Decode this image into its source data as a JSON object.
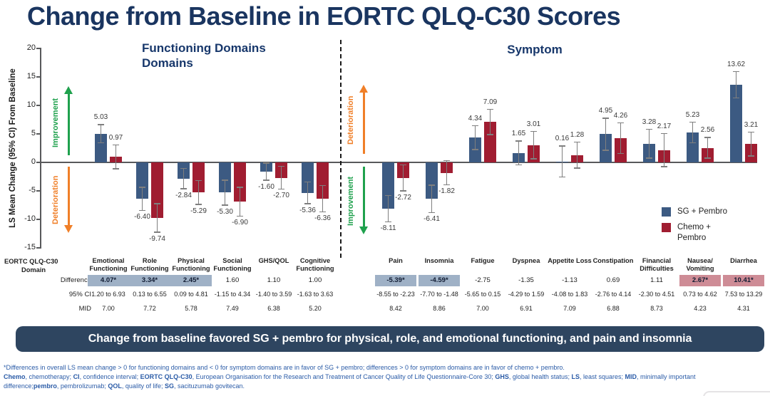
{
  "title": "Change from Baseline in EORTC QLQ-C30 Scores",
  "chart": {
    "y_axis_label": "LS Mean Change (95% CI) From Baseline",
    "functioning_title_line1": "Functioning Domains",
    "functioning_title_line2": "Domains",
    "symptom_title": "Symptom",
    "improvement_label": "Improvement",
    "deterioration_label": "Deterioration",
    "improvement_color": "#1FA14D",
    "deterioration_color": "#F07F28"
  },
  "chart_data": {
    "type": "bar",
    "title": "Change from Baseline in EORTC QLQ-C30 Scores",
    "ylabel": "LS Mean Change (95% CI) From Baseline",
    "ylim": [
      -15,
      20
    ],
    "y_ticks": [
      20,
      15,
      10,
      5,
      0,
      -5,
      -10,
      -15
    ],
    "grid": false,
    "legend_position": "right-bottom",
    "error_bars": "95% CI whiskers shown per bar (unlabeled; lengths estimated from pixels)",
    "groups": {
      "functioning": [
        "Emotional Functioning",
        "Role Functioning",
        "Physical Functioning",
        "Social Functioning",
        "GHS/QOL",
        "Cognitive Functioning"
      ],
      "symptom": [
        "Pain",
        "Insomnia",
        "Fatigue",
        "Dyspnea",
        "Appetite Loss",
        "Constipation",
        "Financial Difficulties",
        "Nausea/Vomiting",
        "Diarrhea"
      ]
    },
    "categories": [
      "Emotional Functioning",
      "Role Functioning",
      "Physical Functioning",
      "Social Functioning",
      "GHS/QOL",
      "Cognitive Functioning",
      "Pain",
      "Insomnia",
      "Fatigue",
      "Dyspnea",
      "Appetite Loss",
      "Constipation",
      "Financial Difficulties",
      "Nausea/Vomiting",
      "Diarrhea"
    ],
    "series": [
      {
        "name": "SG + Pembro",
        "color": "#3C5A82",
        "values": [
          5.03,
          -6.4,
          -2.84,
          -5.3,
          -1.6,
          -5.36,
          -8.11,
          -6.41,
          4.34,
          1.65,
          0.16,
          4.95,
          3.28,
          5.23,
          13.62
        ],
        "labels": [
          "5.03",
          "-6.40",
          "-2.84",
          "-5.30",
          "-1.60",
          "-5.36",
          "-8.11",
          "-6.41",
          "4.34",
          "1.65",
          "0.16",
          "4.95",
          "3.28",
          "5.23",
          "13.62"
        ],
        "errors_est": [
          1.7,
          2.1,
          1.9,
          2.3,
          1.6,
          2.0,
          2.4,
          2.5,
          2.2,
          2.2,
          2.8,
          2.9,
          2.6,
          1.9,
          2.4
        ]
      },
      {
        "name": "Chemo + Pembro",
        "color": "#A01D31",
        "values": [
          0.97,
          -9.74,
          -5.29,
          -6.9,
          -2.7,
          -6.36,
          -2.72,
          -1.82,
          7.09,
          3.01,
          1.28,
          4.26,
          2.17,
          2.56,
          3.21
        ],
        "labels": [
          "0.97",
          "-9.74",
          "-5.29",
          "-6.90",
          "-2.70",
          "-6.36",
          "-2.72",
          "-1.82",
          "7.09",
          "3.01",
          "1.28",
          "4.26",
          "2.17",
          "2.56",
          "3.21"
        ],
        "errors_est": [
          2.2,
          2.6,
          2.2,
          2.6,
          2.1,
          2.4,
          2.4,
          2.2,
          2.3,
          2.5,
          2.4,
          2.8,
          3.0,
          1.9,
          2.2
        ]
      }
    ]
  },
  "legend": {
    "items": [
      {
        "label": "SG + Pembro",
        "color": "#3C5A82"
      },
      {
        "label": "Chemo + Pembro",
        "color": "#A01D31"
      }
    ]
  },
  "table": {
    "domain_label_line1": "EORTC QLQ-C30",
    "domain_label_line2": "Domain",
    "row_labels": {
      "difference": "Difference",
      "ci": "95% CI",
      "mid": "MID"
    },
    "columns": [
      "Emotional Functioning",
      "Role Functioning",
      "Physical Functioning",
      "Social Functioning",
      "GHS/QOL",
      "Cognitive Functioning",
      "Pain",
      "Insomnia",
      "Fatigue",
      "Dyspnea",
      "Appetite Loss",
      "Constipation",
      "Financial Difficulties",
      "Nausea/ Vomiting",
      "Diarrhea"
    ],
    "difference": [
      "4.07*",
      "3.34*",
      "2.45*",
      "1.60",
      "1.10",
      "1.00",
      "-5.39*",
      "-4.59*",
      "-2.75",
      "-1.35",
      "-1.13",
      "0.69",
      "1.11",
      "2.67*",
      "10.41*"
    ],
    "difference_highlight": [
      "blue",
      "blue",
      "blue",
      null,
      null,
      null,
      "blue",
      "blue",
      null,
      null,
      null,
      null,
      null,
      "red",
      "red"
    ],
    "highlight_colors": {
      "blue": "#9FB1C6",
      "red": "#CE8C96"
    },
    "ci": [
      "1.20 to 6.93",
      "0.13 to 6.55",
      "0.09 to 4.81",
      "-1.15 to 4.34",
      "-1.40 to 3.59",
      "-1.63 to 3.63",
      "-8.55 to -2.23",
      "-7.70 to -1.48",
      "-5.65 to 0.15",
      "-4.29 to 1.59",
      "-4.08 to 1.83",
      "-2.76 to 4.14",
      "-2.30 to 4.51",
      "0.73 to 4.62",
      "7.53 to 13.29"
    ],
    "mid": [
      "7.00",
      "7.72",
      "5.78",
      "7.49",
      "6.38",
      "5.20",
      "8.42",
      "8.86",
      "7.00",
      "6.91",
      "7.09",
      "6.88",
      "8.73",
      "4.23",
      "4.31"
    ]
  },
  "banner": {
    "text": "Change from baseline favored SG + pembro for physical, role, and emotional functioning, and pain and insomnia",
    "bg": "#2E4560"
  },
  "footnotes": {
    "lines": [
      [
        {
          "b": 0,
          "t": "*Differences in overall LS mean change > 0 for functioning domains and < 0 for symptom domains are in favor of SG + pembro; differences > 0 for symptom domains are in favor of chemo + pembro."
        }
      ],
      [
        {
          "b": 1,
          "t": "Chemo"
        },
        {
          "b": 0,
          "t": ", chemotherapy; "
        },
        {
          "b": 1,
          "t": "CI"
        },
        {
          "b": 0,
          "t": ", confidence interval; "
        },
        {
          "b": 1,
          "t": "EORTC QLQ-C30"
        },
        {
          "b": 0,
          "t": ", European Organisation for the Research and Treatment of Cancer Quality of Life Questionnaire-Core 30; "
        },
        {
          "b": 1,
          "t": "GHS"
        },
        {
          "b": 0,
          "t": ", global health status; "
        },
        {
          "b": 1,
          "t": "LS"
        },
        {
          "b": 0,
          "t": ", least squares; "
        },
        {
          "b": 1,
          "t": "MID"
        },
        {
          "b": 0,
          "t": ", minimally important"
        }
      ],
      [
        {
          "b": 0,
          "t": "difference;"
        },
        {
          "b": 1,
          "t": "pembro"
        },
        {
          "b": 0,
          "t": ", pembrolizumab; "
        },
        {
          "b": 1,
          "t": "QOL"
        },
        {
          "b": 0,
          "t": ", quality of life; "
        },
        {
          "b": 1,
          "t": "SG"
        },
        {
          "b": 0,
          "t": ", sacituzumab govitecan."
        }
      ]
    ]
  }
}
